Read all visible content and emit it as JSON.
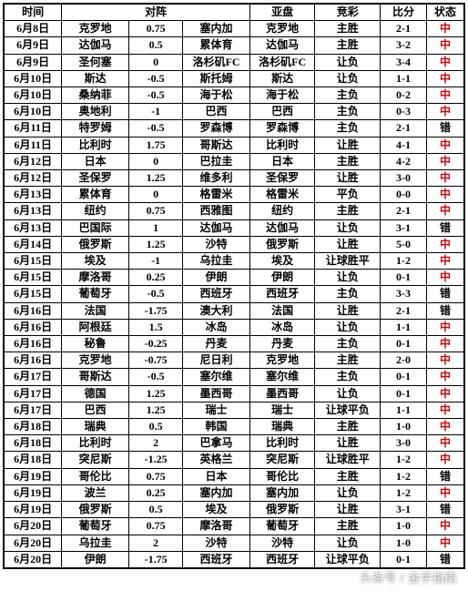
{
  "header": {
    "date": "时间",
    "matchup": "对阵",
    "yapan": "亚盘",
    "jingcai": "竞彩",
    "score": "比分",
    "status": "状态"
  },
  "status_labels": {
    "hit": "中",
    "miss": "错"
  },
  "watermark": "头条号 / 金手指南",
  "rows": [
    {
      "date": "6月8日",
      "t1": "克罗地",
      "h": "0.75",
      "t2": "塞内加",
      "yp": "克罗地",
      "jc": "主胜",
      "sc": "2-1",
      "st": "hit"
    },
    {
      "date": "6月9日",
      "t1": "达伽马",
      "h": "0.5",
      "t2": "累体育",
      "yp": "达伽马",
      "jc": "主胜",
      "sc": "3-2",
      "st": "hit"
    },
    {
      "date": "6月9日",
      "t1": "圣何塞",
      "h": "0",
      "t2": "洛杉矶FC",
      "yp": "洛杉矶FC",
      "jc": "让负",
      "sc": "3-4",
      "st": "hit"
    },
    {
      "date": "6月10日",
      "t1": "斯达",
      "h": "-0.5",
      "t2": "斯托姆",
      "yp": "斯达",
      "jc": "让负",
      "sc": "1-1",
      "st": "hit"
    },
    {
      "date": "6月10日",
      "t1": "桑纳菲",
      "h": "-0.5",
      "t2": "海于松",
      "yp": "海于松",
      "jc": "主负",
      "sc": "0-2",
      "st": "hit"
    },
    {
      "date": "6月10日",
      "t1": "奥地利",
      "h": "-1",
      "t2": "巴西",
      "yp": "巴西",
      "jc": "主负",
      "sc": "0-3",
      "st": "hit"
    },
    {
      "date": "6月11日",
      "t1": "特罗姆",
      "h": "-0.5",
      "t2": "罗森博",
      "yp": "罗森博",
      "jc": "主负",
      "sc": "2-1",
      "st": "miss"
    },
    {
      "date": "6月11日",
      "t1": "比利时",
      "h": "1.75",
      "t2": "哥斯达",
      "yp": "比利时",
      "jc": "让胜",
      "sc": "4-1",
      "st": "hit"
    },
    {
      "date": "6月12日",
      "t1": "日本",
      "h": "0",
      "t2": "巴拉圭",
      "yp": "日本",
      "jc": "主胜",
      "sc": "4-2",
      "st": "hit"
    },
    {
      "date": "6月12日",
      "t1": "圣保罗",
      "h": "1.25",
      "t2": "维多利",
      "yp": "圣保罗",
      "jc": "让胜",
      "sc": "3-0",
      "st": "hit"
    },
    {
      "date": "6月13日",
      "t1": "累体育",
      "h": "0",
      "t2": "格雷米",
      "yp": "格雷米",
      "jc": "平负",
      "sc": "0-0",
      "st": "hit"
    },
    {
      "date": "6月13日",
      "t1": "纽约",
      "h": "0.75",
      "t2": "西雅图",
      "yp": "纽约",
      "jc": "主胜",
      "sc": "2-1",
      "st": "hit"
    },
    {
      "date": "6月13日",
      "t1": "巴国际",
      "h": "1",
      "t2": "达伽马",
      "yp": "达伽马",
      "jc": "让负",
      "sc": "3-1",
      "st": "miss"
    },
    {
      "date": "6月14日",
      "t1": "俄罗斯",
      "h": "1.25",
      "t2": "沙特",
      "yp": "俄罗斯",
      "jc": "让胜",
      "sc": "5-0",
      "st": "hit"
    },
    {
      "date": "6月15日",
      "t1": "埃及",
      "h": "-1",
      "t2": "乌拉圭",
      "yp": "埃及",
      "jc": "让球胜平",
      "sc": "1-2",
      "st": "hit"
    },
    {
      "date": "6月15日",
      "t1": "摩洛哥",
      "h": "0.25",
      "t2": "伊朗",
      "yp": "伊朗",
      "jc": "让负",
      "sc": "0-1",
      "st": "hit"
    },
    {
      "date": "6月15日",
      "t1": "葡萄牙",
      "h": "-0.5",
      "t2": "西班牙",
      "yp": "西班牙",
      "jc": "主负",
      "sc": "3-3",
      "st": "miss"
    },
    {
      "date": "6月16日",
      "t1": "法国",
      "h": "-1.75",
      "t2": "澳大利",
      "yp": "法国",
      "jc": "让胜",
      "sc": "2-1",
      "st": "miss"
    },
    {
      "date": "6月16日",
      "t1": "阿根廷",
      "h": "1.5",
      "t2": "冰岛",
      "yp": "冰岛",
      "jc": "让负",
      "sc": "1-1",
      "st": "hit"
    },
    {
      "date": "6月16日",
      "t1": "秘鲁",
      "h": "-0.25",
      "t2": "丹麦",
      "yp": "丹麦",
      "jc": "主负",
      "sc": "0-1",
      "st": "hit"
    },
    {
      "date": "6月16日",
      "t1": "克罗地",
      "h": "-0.75",
      "t2": "尼日利",
      "yp": "克罗地",
      "jc": "主胜",
      "sc": "2-0",
      "st": "hit"
    },
    {
      "date": "6月17日",
      "t1": "哥斯达",
      "h": "-0.5",
      "t2": "塞尔维",
      "yp": "塞尔维",
      "jc": "主负",
      "sc": "0-1",
      "st": "hit"
    },
    {
      "date": "6月17日",
      "t1": "德国",
      "h": "1.25",
      "t2": "墨西哥",
      "yp": "墨西哥",
      "jc": "让负",
      "sc": "0-1",
      "st": "hit"
    },
    {
      "date": "6月17日",
      "t1": "巴西",
      "h": "1.25",
      "t2": "瑞士",
      "yp": "瑞士",
      "jc": "让球平负",
      "sc": "1-1",
      "st": "hit"
    },
    {
      "date": "6月18日",
      "t1": "瑞典",
      "h": "0.5",
      "t2": "韩国",
      "yp": "瑞典",
      "jc": "主胜",
      "sc": "1-0",
      "st": "hit"
    },
    {
      "date": "6月18日",
      "t1": "比利时",
      "h": "2",
      "t2": "巴拿马",
      "yp": "比利时",
      "jc": "让胜",
      "sc": "3-0",
      "st": "hit"
    },
    {
      "date": "6月18日",
      "t1": "突尼斯",
      "h": "-1.25",
      "t2": "英格兰",
      "yp": "突尼斯",
      "jc": "让球胜平",
      "sc": "1-2",
      "st": "hit"
    },
    {
      "date": "6月19日",
      "t1": "哥伦比",
      "h": "0.75",
      "t2": "日本",
      "yp": "哥伦比",
      "jc": "主胜",
      "sc": "1-2",
      "st": "miss"
    },
    {
      "date": "6月19日",
      "t1": "波兰",
      "h": "0.25",
      "t2": "塞内加",
      "yp": "塞内加",
      "jc": "让负",
      "sc": "1-2",
      "st": "hit"
    },
    {
      "date": "6月19日",
      "t1": "俄罗斯",
      "h": "0.5",
      "t2": "埃及",
      "yp": "俄罗斯",
      "jc": "让胜",
      "sc": "3-1",
      "st": "miss"
    },
    {
      "date": "6月20日",
      "t1": "葡萄牙",
      "h": "0.75",
      "t2": "摩洛哥",
      "yp": "葡萄牙",
      "jc": "主胜",
      "sc": "1-0",
      "st": "hit"
    },
    {
      "date": "6月20日",
      "t1": "乌拉圭",
      "h": "2",
      "t2": "沙特",
      "yp": "沙特",
      "jc": "让负",
      "sc": "1-0",
      "st": "hit"
    },
    {
      "date": "6月20日",
      "t1": "伊朗",
      "h": "-1.75",
      "t2": "西班牙",
      "yp": "西班牙",
      "jc": "让球平负",
      "sc": "0-1",
      "st": "miss"
    }
  ]
}
